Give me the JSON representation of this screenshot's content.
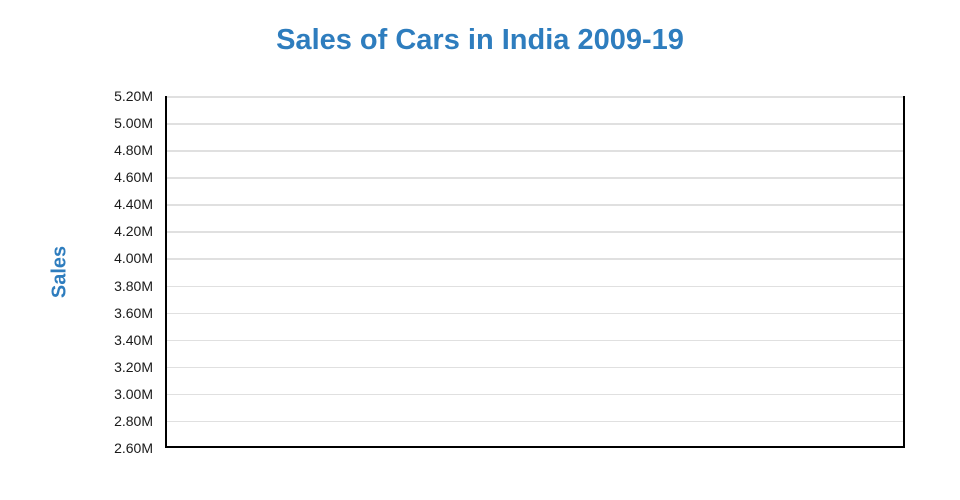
{
  "chart": {
    "title": "Sales of Cars in India 2009-19",
    "y_axis": {
      "title": "Sales",
      "tick_labels": [
        "5.20M",
        "5.00M",
        "4.80M",
        "4.60M",
        "4.40M",
        "4.20M",
        "4.00M",
        "3.80M",
        "3.60M",
        "3.40M",
        "3.20M",
        "3.00M",
        "2.80M",
        "2.60M"
      ]
    },
    "x_axis": {
      "tick_labels": []
    }
  },
  "chart_data": {
    "type": "line",
    "title": "Sales of Cars in India 2009-19",
    "xlabel": "",
    "ylabel": "Sales",
    "ylim": [
      2600000,
      5200000
    ],
    "y_tick_interval": 200000,
    "y_tick_labels": [
      "5.20M",
      "5.00M",
      "4.80M",
      "4.60M",
      "4.40M",
      "4.20M",
      "4.00M",
      "3.80M",
      "3.60M",
      "3.40M",
      "3.20M",
      "3.00M",
      "2.80M",
      "2.60M"
    ],
    "x": [],
    "series": [],
    "grid": true,
    "legend": "none",
    "plot_area_empty": true
  },
  "colors": {
    "accent_blue": "#2e7dbe",
    "grid_line": "#e0e0e0",
    "axis_line": "#000000",
    "tick_text": "#1a1a1a",
    "background": "#ffffff"
  }
}
